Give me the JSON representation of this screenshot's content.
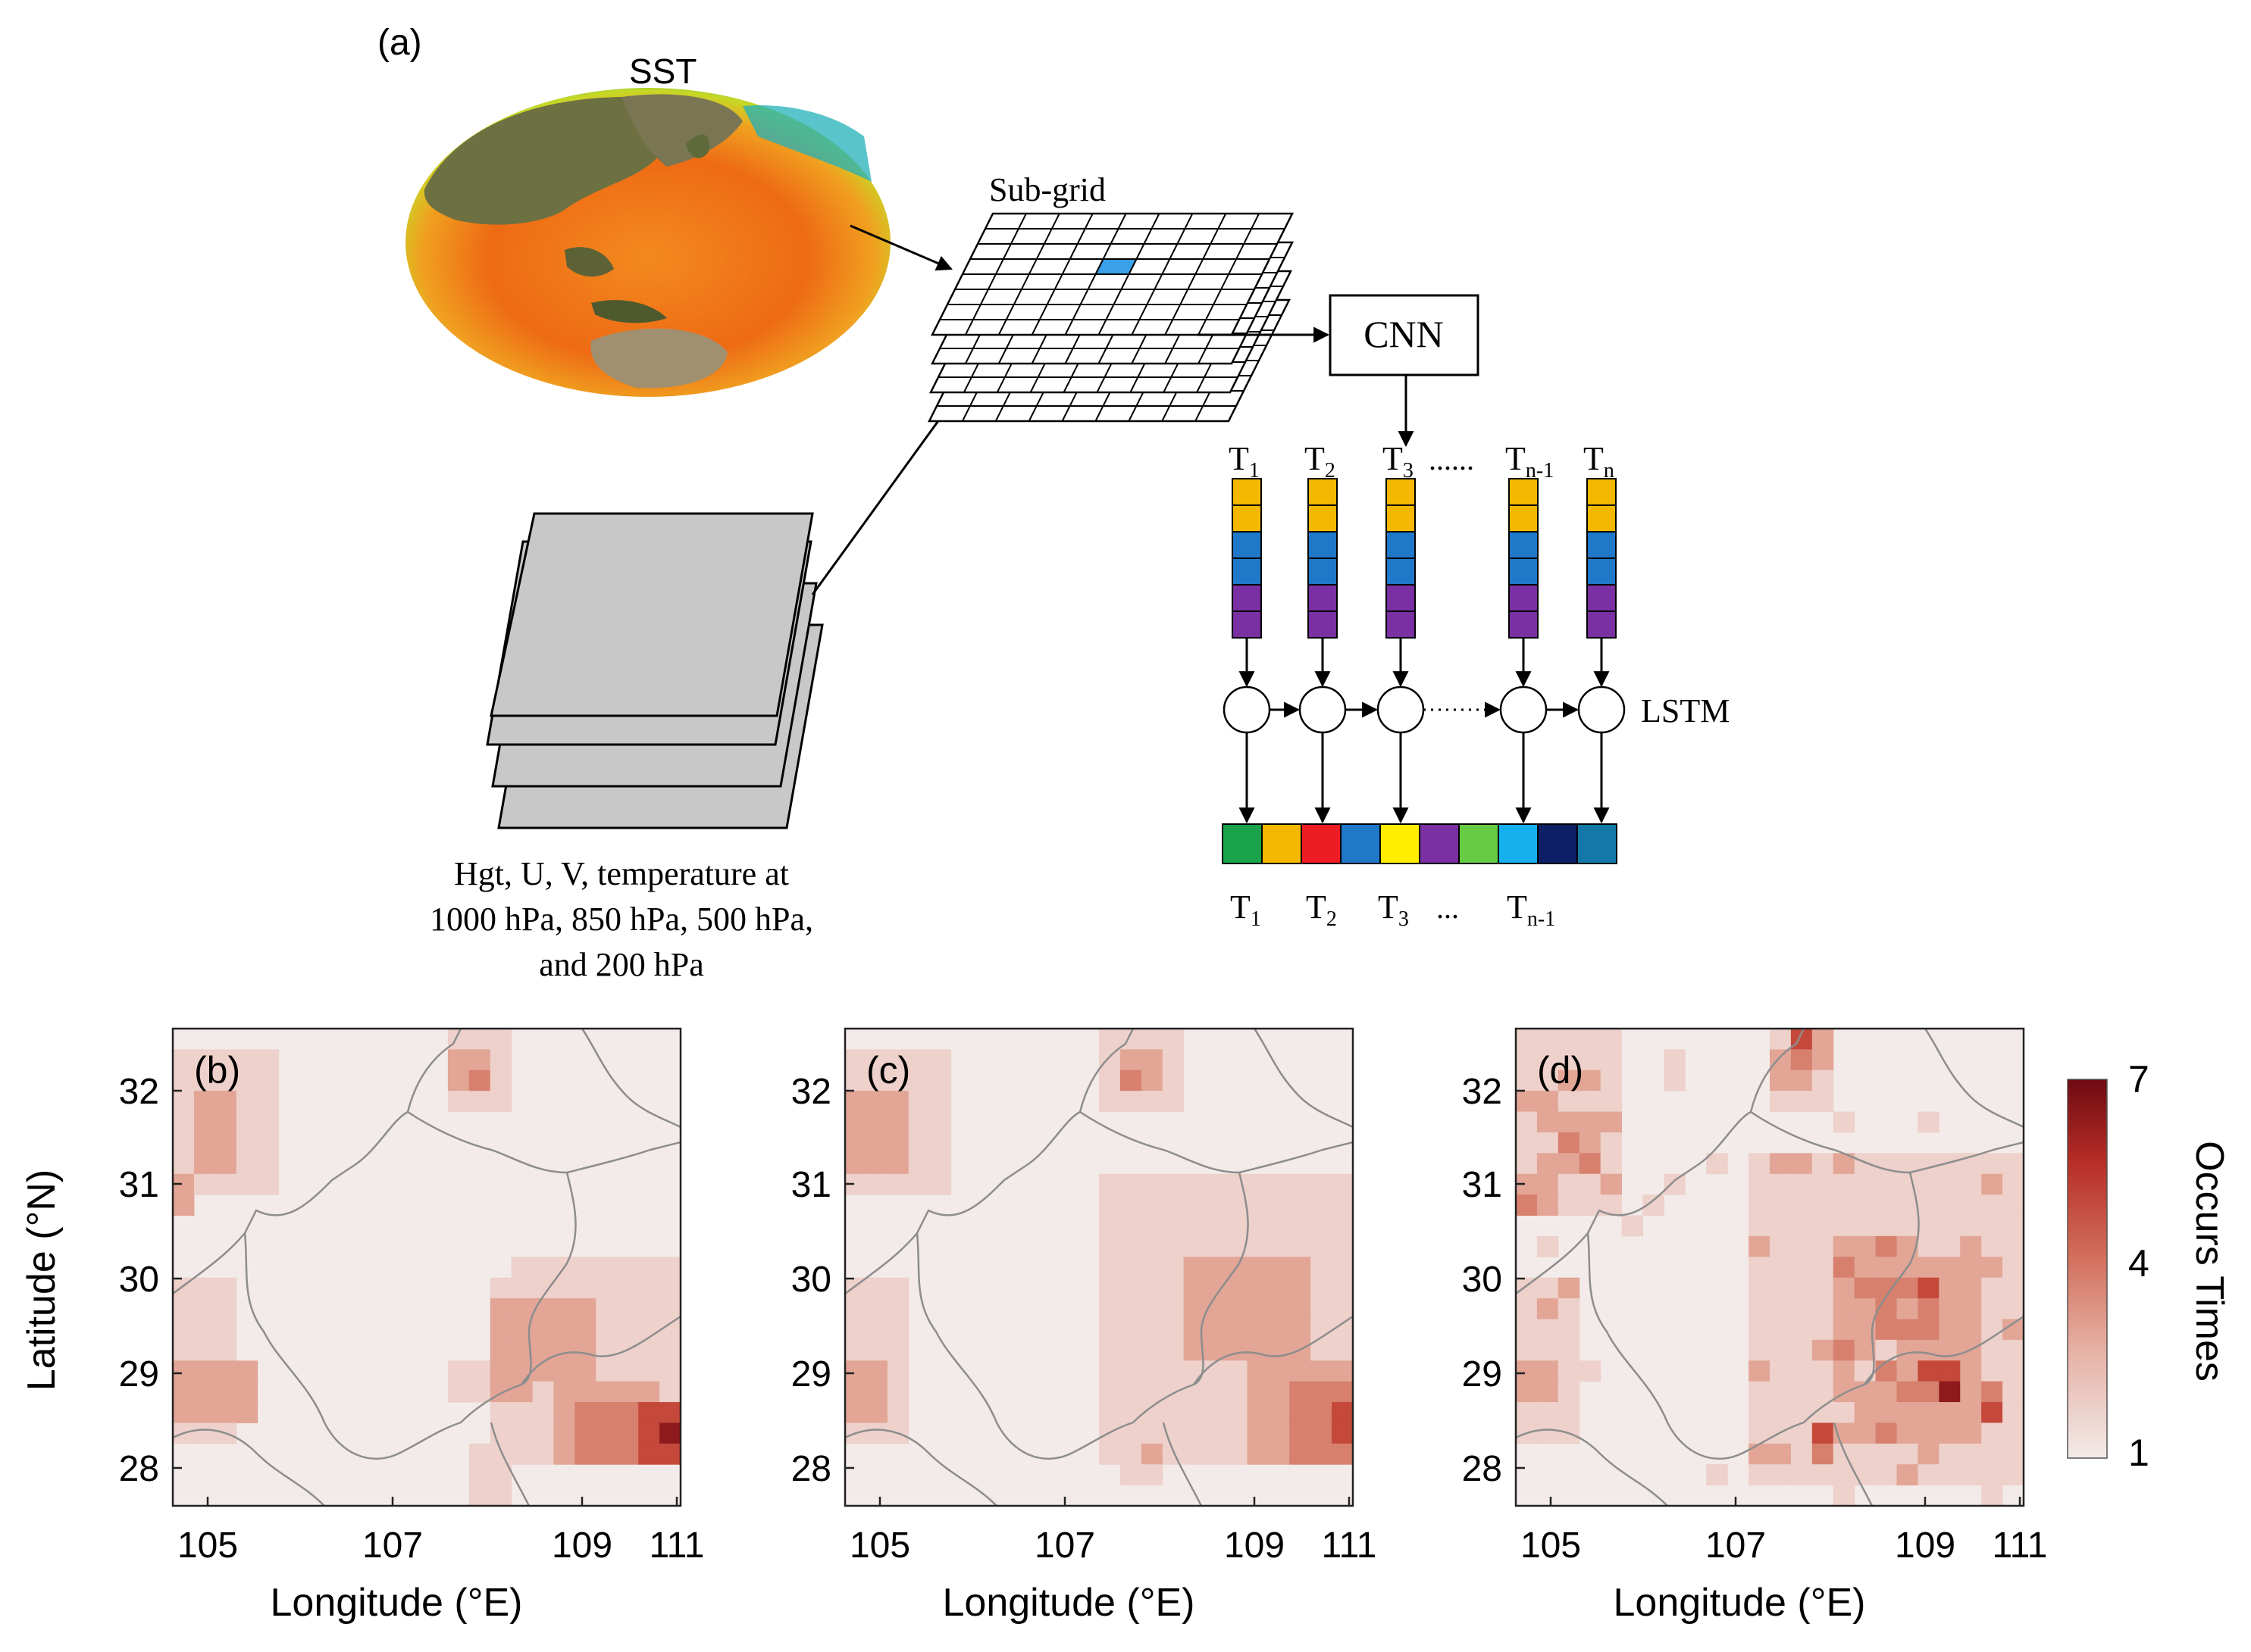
{
  "panel_a": {
    "label": "(a)",
    "sst_label": "SST",
    "subgrid_label": "Sub-grid",
    "cnn_label": "CNN",
    "lstm_label": "LSTM",
    "input_caption": [
      "Hgt, U, V, temperature at",
      "1000 hPa, 850 hPa, 500 hPa,",
      "and 200 hPa"
    ],
    "top_steps": [
      {
        "base": "T",
        "sub": "1"
      },
      {
        "base": "T",
        "sub": "2"
      },
      {
        "base": "T",
        "sub": "3"
      },
      {
        "base": "T",
        "sub": "n-1"
      },
      {
        "base": "T",
        "sub": "n"
      }
    ],
    "top_dots": "......",
    "bottom_steps": [
      {
        "base": "T",
        "sub": "1"
      },
      {
        "base": "T",
        "sub": "2"
      },
      {
        "base": "T",
        "sub": "3"
      },
      {
        "base": "T",
        "sub": "n-1"
      }
    ],
    "bottom_dots": "...",
    "vector_colors": [
      "#f5b800",
      "#f5b800",
      "#1f78c8",
      "#1f78c8",
      "#7a2fa3",
      "#7a2fa3"
    ],
    "output_colors": [
      "#1aa34a",
      "#f5b800",
      "#ee1c25",
      "#1f78c8",
      "#ffee00",
      "#7a2fa3",
      "#66cc44",
      "#16b0ef",
      "#0d1f66",
      "#1479a8"
    ]
  },
  "maps": [
    {
      "label": "(b)",
      "xlabel": "Longitude (°E)"
    },
    {
      "label": "(c)",
      "xlabel": "Longitude (°E)"
    },
    {
      "label": "(d)",
      "xlabel": "Longitude (°E)"
    }
  ],
  "axes": {
    "ylabel": "Latitude (°N)",
    "x_ticks": [
      "105",
      "107",
      "109",
      "111"
    ],
    "y_ticks": [
      "32",
      "31",
      "30",
      "29",
      "28"
    ]
  },
  "colorbar": {
    "label": "Occurs Times",
    "ticks": [
      "7",
      "4",
      "1"
    ],
    "colors": [
      "#f2ebe9",
      "#e6ada1",
      "#d06a57",
      "#b72e26",
      "#6e0a12"
    ]
  }
}
